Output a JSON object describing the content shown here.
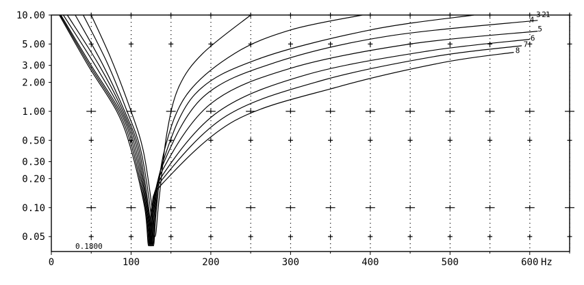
{
  "chart_data": {
    "type": "line",
    "title": "",
    "xlabel": "",
    "ylabel": "",
    "x_unit": "Hz",
    "xlim": [
      0,
      650
    ],
    "ylim": [
      0.035,
      10.0
    ],
    "y_scale": "log",
    "grid": true,
    "x_ticks": [
      {
        "value": 0,
        "label": "0"
      },
      {
        "value": 100,
        "label": "100"
      },
      {
        "value": 200,
        "label": "200"
      },
      {
        "value": 300,
        "label": "300"
      },
      {
        "value": 400,
        "label": "400"
      },
      {
        "value": 500,
        "label": "500"
      },
      {
        "value": 600,
        "label": "600"
      }
    ],
    "y_ticks": [
      {
        "value": 10.0,
        "label": "10.00"
      },
      {
        "value": 5.0,
        "label": "5.00"
      },
      {
        "value": 3.0,
        "label": "3.00"
      },
      {
        "value": 2.0,
        "label": "2.00"
      },
      {
        "value": 1.0,
        "label": "1.00"
      },
      {
        "value": 0.5,
        "label": "0.50"
      },
      {
        "value": 0.3,
        "label": "0.30"
      },
      {
        "value": 0.2,
        "label": "0.20"
      },
      {
        "value": 0.1,
        "label": "0.10"
      },
      {
        "value": 0.05,
        "label": "0.05"
      }
    ],
    "annotation": "0.1800",
    "series": [
      {
        "name": "1",
        "label_at": [
          620,
          10.2
        ],
        "points": [
          [
            50,
            10
          ],
          [
            75,
            3.5
          ],
          [
            100,
            1.0
          ],
          [
            115,
            0.4
          ],
          [
            125,
            0.12
          ],
          [
            130,
            0.05
          ],
          [
            135,
            0.12
          ],
          [
            145,
            0.6
          ],
          [
            160,
            1.8
          ],
          [
            190,
            4.0
          ],
          [
            250,
            10
          ]
        ]
      },
      {
        "name": "2",
        "label_at": [
          615,
          10.2
        ],
        "points": [
          [
            40,
            10
          ],
          [
            70,
            3.2
          ],
          [
            95,
            1.0
          ],
          [
            112,
            0.4
          ],
          [
            124,
            0.1
          ],
          [
            128,
            0.04
          ],
          [
            132,
            0.1
          ],
          [
            142,
            0.4
          ],
          [
            170,
            1.5
          ],
          [
            230,
            4.0
          ],
          [
            300,
            7.0
          ],
          [
            390,
            10
          ]
        ]
      },
      {
        "name": "3",
        "label_at": [
          608,
          10.2
        ],
        "points": [
          [
            30,
            10
          ],
          [
            65,
            3.0
          ],
          [
            92,
            1.0
          ],
          [
            110,
            0.4
          ],
          [
            122,
            0.1
          ],
          [
            127,
            0.04
          ],
          [
            131,
            0.1
          ],
          [
            140,
            0.3
          ],
          [
            180,
            1.5
          ],
          [
            260,
            3.5
          ],
          [
            400,
            7.0
          ],
          [
            530,
            10
          ]
        ]
      },
      {
        "name": "4",
        "label_at": [
          600,
          9.0
        ],
        "points": [
          [
            20,
            10
          ],
          [
            60,
            3.0
          ],
          [
            90,
            1.0
          ],
          [
            108,
            0.4
          ],
          [
            121,
            0.1
          ],
          [
            126,
            0.04
          ],
          [
            130,
            0.1
          ],
          [
            140,
            0.28
          ],
          [
            190,
            1.4
          ],
          [
            280,
            3.2
          ],
          [
            420,
            6.0
          ],
          [
            610,
            8.8
          ]
        ]
      },
      {
        "name": "5",
        "label_at": [
          610,
          7.2
        ],
        "points": [
          [
            15,
            10
          ],
          [
            55,
            3.0
          ],
          [
            88,
            1.0
          ],
          [
            106,
            0.4
          ],
          [
            120,
            0.1
          ],
          [
            125,
            0.04
          ],
          [
            129,
            0.1
          ],
          [
            140,
            0.25
          ],
          [
            200,
            1.2
          ],
          [
            300,
            2.8
          ],
          [
            450,
            5.0
          ],
          [
            610,
            6.8
          ]
        ]
      },
      {
        "name": "6",
        "label_at": [
          601,
          5.8
        ],
        "points": [
          [
            12,
            10
          ],
          [
            50,
            3.0
          ],
          [
            86,
            1.0
          ],
          [
            104,
            0.4
          ],
          [
            119,
            0.1
          ],
          [
            124,
            0.04
          ],
          [
            128,
            0.1
          ],
          [
            140,
            0.22
          ],
          [
            210,
            1.0
          ],
          [
            320,
            2.4
          ],
          [
            470,
            4.2
          ],
          [
            600,
            5.6
          ]
        ]
      },
      {
        "name": "7",
        "label_at": [
          592,
          5.0
        ],
        "points": [
          [
            11,
            10
          ],
          [
            48,
            3.0
          ],
          [
            84,
            1.0
          ],
          [
            102,
            0.4
          ],
          [
            118,
            0.1
          ],
          [
            123,
            0.04
          ],
          [
            127,
            0.1
          ],
          [
            140,
            0.2
          ],
          [
            220,
            0.9
          ],
          [
            340,
            2.1
          ],
          [
            480,
            3.7
          ],
          [
            590,
            4.8
          ]
        ]
      },
      {
        "name": "8",
        "label_at": [
          582,
          4.3
        ],
        "points": [
          [
            10,
            10
          ],
          [
            46,
            3.0
          ],
          [
            82,
            1.0
          ],
          [
            100,
            0.4
          ],
          [
            117,
            0.1
          ],
          [
            122,
            0.04
          ],
          [
            126,
            0.1
          ],
          [
            140,
            0.18
          ],
          [
            230,
            0.8
          ],
          [
            360,
            1.8
          ],
          [
            490,
            3.2
          ],
          [
            580,
            4.1
          ]
        ]
      }
    ]
  }
}
